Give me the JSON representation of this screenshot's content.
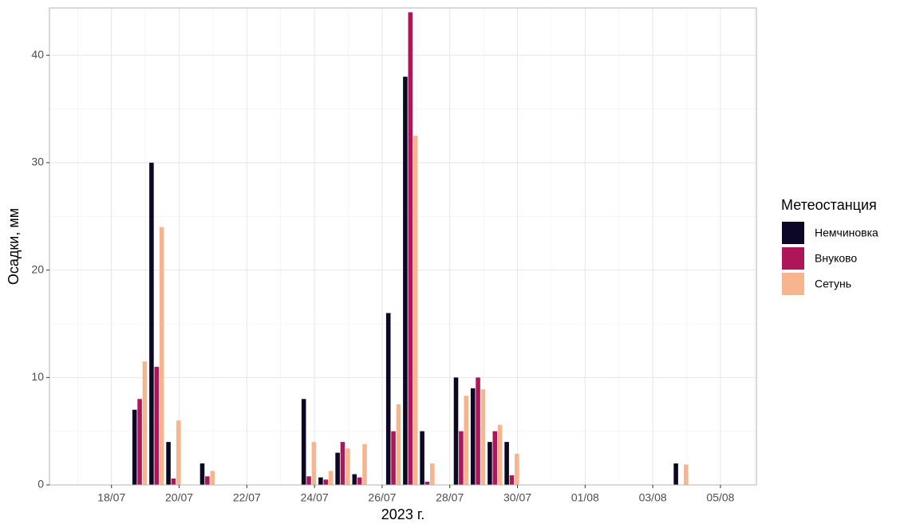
{
  "chart_data": {
    "type": "bar",
    "xlabel": "2023 г.",
    "ylabel": "Осадки, мм",
    "legend_title": "Метеостанция",
    "x": [
      "2023-07-18T20:00",
      "2023-07-19T08:00",
      "2023-07-19T20:00",
      "2023-07-20T20:00",
      "2023-07-23T20:00",
      "2023-07-24T08:00",
      "2023-07-24T20:00",
      "2023-07-25T08:00",
      "2023-07-26T08:00",
      "2023-07-26T20:00",
      "2023-07-27T08:00",
      "2023-07-28T08:00",
      "2023-07-28T20:00",
      "2023-07-29T08:00",
      "2023-07-29T20:00",
      "2023-08-03T20:00"
    ],
    "series": [
      {
        "name": "Немчиновка",
        "color": "#0b0724",
        "values": [
          7,
          30,
          4,
          2,
          8,
          0.7,
          3,
          1,
          16,
          38,
          5,
          10,
          9,
          4,
          4,
          2
        ]
      },
      {
        "name": "Внуково",
        "color": "#ad1759",
        "values": [
          8,
          11,
          0.6,
          0.8,
          0.8,
          0.5,
          4,
          0.7,
          5,
          44,
          0.3,
          5,
          10,
          5,
          0.9,
          null
        ]
      },
      {
        "name": "Сетунь",
        "color": "#f6b48f",
        "values": [
          11.5,
          24,
          6,
          1.3,
          4,
          1.3,
          3.4,
          3.8,
          7.5,
          32.5,
          2,
          8.3,
          8.9,
          5.6,
          2.9,
          1.9
        ]
      }
    ],
    "xlim": [
      "2023-07-16T04:00",
      "2023-08-06T01:30"
    ],
    "xticks": [
      {
        "value": "2023-07-18T00:00",
        "label": "18/07"
      },
      {
        "value": "2023-07-20T00:00",
        "label": "20/07"
      },
      {
        "value": "2023-07-22T00:00",
        "label": "22/07"
      },
      {
        "value": "2023-07-24T00:00",
        "label": "24/07"
      },
      {
        "value": "2023-07-26T00:00",
        "label": "26/07"
      },
      {
        "value": "2023-07-28T00:00",
        "label": "28/07"
      },
      {
        "value": "2023-07-30T00:00",
        "label": "30/07"
      },
      {
        "value": "2023-08-01T00:00",
        "label": "01/08"
      },
      {
        "value": "2023-08-03T00:00",
        "label": "03/08"
      },
      {
        "value": "2023-08-05T00:00",
        "label": "05/08"
      }
    ],
    "ylim": [
      0,
      44.4
    ],
    "yticks": [
      0,
      10,
      20,
      30,
      40
    ],
    "grid": true,
    "legend": "right"
  }
}
